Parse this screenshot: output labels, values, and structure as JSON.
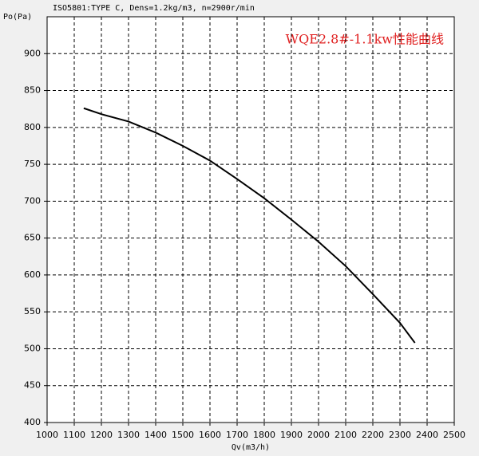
{
  "chart_data": {
    "type": "line",
    "title": "ISO5801:TYPE C, Dens=1.2kg/m3, n=2900r/min",
    "annotation": "WQE2.8#-1.1kw性能曲线",
    "x_label": "Qv(m3/h)",
    "y_label": "Po(Pa)",
    "x": [
      1135,
      1200,
      1300,
      1400,
      1500,
      1600,
      1700,
      1800,
      1900,
      2000,
      2100,
      2200,
      2300,
      2355
    ],
    "series": [
      {
        "color": "#000000",
        "values": [
          826,
          818,
          808,
          793,
          775,
          755,
          730,
          704,
          675,
          645,
          612,
          574,
          535,
          508
        ]
      }
    ],
    "xlim": [
      1000,
      2500
    ],
    "ylim": [
      400,
      950
    ],
    "xticks": [
      1000,
      1100,
      1200,
      1300,
      1400,
      1500,
      1600,
      1700,
      1800,
      1900,
      2000,
      2100,
      2200,
      2300,
      2400,
      2500
    ],
    "yticks": [
      400,
      450,
      500,
      550,
      600,
      650,
      700,
      750,
      800,
      850,
      900
    ],
    "grid": true
  }
}
